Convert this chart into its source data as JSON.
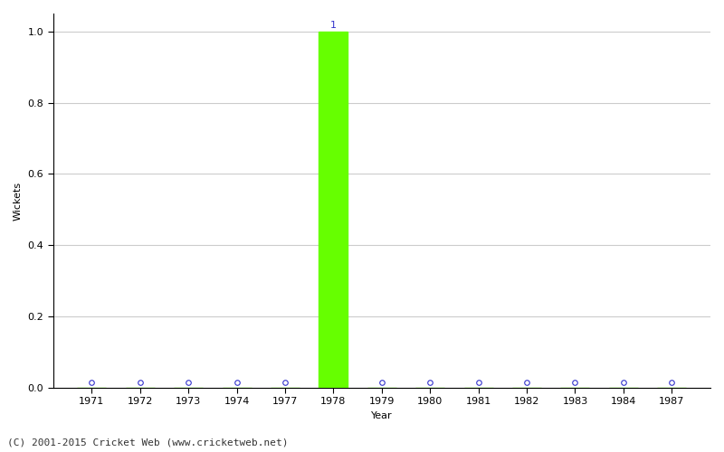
{
  "years": [
    "1971",
    "1972",
    "1973",
    "1974",
    "1977",
    "1978",
    "1979",
    "1980",
    "1981",
    "1982",
    "1983",
    "1984",
    "1987"
  ],
  "values": [
    0,
    0,
    0,
    0,
    0,
    1,
    0,
    0,
    0,
    0,
    0,
    0,
    0
  ],
  "bar_color": "#66ff00",
  "zero_marker_color": "#3333cc",
  "xlabel": "Year",
  "ylabel": "Wickets",
  "ylim": [
    0.0,
    1.05
  ],
  "yticks": [
    0.0,
    0.2,
    0.4,
    0.6,
    0.8,
    1.0
  ],
  "background_color": "#ffffff",
  "grid_color": "#cccccc",
  "footer": "(C) 2001-2015 Cricket Web (www.cricketweb.net)",
  "bar_label_color": "#3333cc",
  "bar_label_fontsize": 8,
  "axis_label_fontsize": 8,
  "tick_fontsize": 8,
  "footer_fontsize": 8,
  "spine_color": "#000000"
}
